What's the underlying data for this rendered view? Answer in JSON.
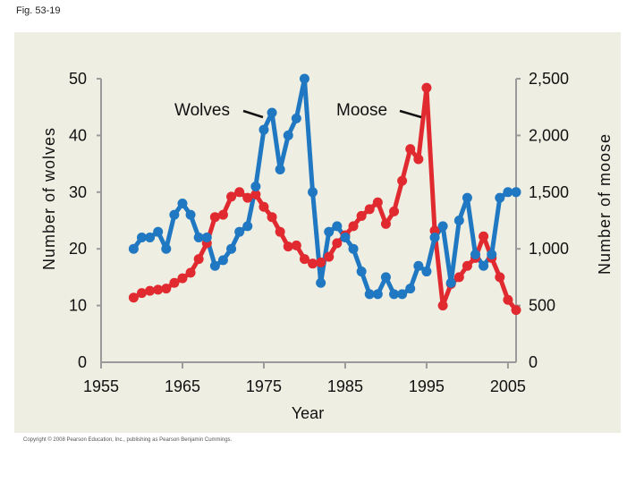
{
  "figure_label": "Fig. 53-19",
  "copyright": "Copyright © 2008 Pearson Education, Inc., publishing as Pearson Benjamin Cummings.",
  "colors": {
    "panel": "#eeeee2",
    "wolves": "#1f78c1",
    "moose": "#e02a30",
    "axis": "#9a9a9a"
  },
  "chart_data": {
    "type": "line",
    "title": "",
    "xlabel": "Year",
    "ylabel": "Number of wolves",
    "y2label": "Number of moose",
    "xlim": [
      1955,
      2006
    ],
    "ylim": [
      0,
      50
    ],
    "y2lim": [
      0,
      2500
    ],
    "x_ticks": [
      "1955",
      "1965",
      "1975",
      "1985",
      "1995",
      "2005"
    ],
    "y_ticks": [
      "0",
      "10",
      "20",
      "30",
      "40",
      "50"
    ],
    "y2_ticks": [
      "0",
      "500",
      "1,000",
      "1,500",
      "2,000",
      "2,500"
    ],
    "grid": false,
    "series": [
      {
        "name": "Wolves",
        "axis": "left",
        "color": "#1f78c1",
        "x": [
          1959,
          1960,
          1961,
          1962,
          1963,
          1964,
          1965,
          1966,
          1967,
          1968,
          1969,
          1970,
          1971,
          1972,
          1973,
          1974,
          1975,
          1976,
          1977,
          1978,
          1979,
          1980,
          1981,
          1982,
          1983,
          1984,
          1985,
          1986,
          1987,
          1988,
          1989,
          1990,
          1991,
          1992,
          1993,
          1994,
          1995,
          1996,
          1997,
          1998,
          1999,
          2000,
          2001,
          2002,
          2003,
          2004,
          2005,
          2006
        ],
        "values": [
          20,
          22,
          22,
          23,
          20,
          26,
          28,
          26,
          22,
          22,
          17,
          18,
          20,
          23,
          24,
          31,
          41,
          44,
          34,
          40,
          43,
          50,
          30,
          14,
          23,
          24,
          22,
          20,
          16,
          12,
          12,
          15,
          12,
          12,
          13,
          17,
          16,
          22,
          24,
          14,
          25,
          29,
          19,
          17,
          19,
          29,
          30,
          30
        ]
      },
      {
        "name": "Moose",
        "axis": "right",
        "color": "#e02a30",
        "x": [
          1959,
          1960,
          1961,
          1962,
          1963,
          1964,
          1965,
          1966,
          1967,
          1968,
          1969,
          1970,
          1971,
          1972,
          1973,
          1974,
          1975,
          1976,
          1977,
          1978,
          1979,
          1980,
          1981,
          1982,
          1983,
          1984,
          1985,
          1986,
          1987,
          1988,
          1989,
          1990,
          1991,
          1992,
          1993,
          1994,
          1995,
          1996,
          1997,
          1998,
          1999,
          2000,
          2001,
          2002,
          2003,
          2004,
          2005,
          2006
        ],
        "values": [
          570,
          610,
          630,
          640,
          650,
          700,
          740,
          790,
          910,
          1050,
          1280,
          1300,
          1460,
          1500,
          1450,
          1480,
          1370,
          1280,
          1150,
          1020,
          1030,
          910,
          870,
          880,
          930,
          1050,
          1120,
          1200,
          1290,
          1350,
          1410,
          1220,
          1330,
          1600,
          1880,
          1790,
          2420,
          1160,
          500,
          690,
          750,
          850,
          920,
          1110,
          920,
          750,
          550,
          460
        ]
      }
    ],
    "annotations": [
      "Wolves",
      "Moose"
    ]
  }
}
